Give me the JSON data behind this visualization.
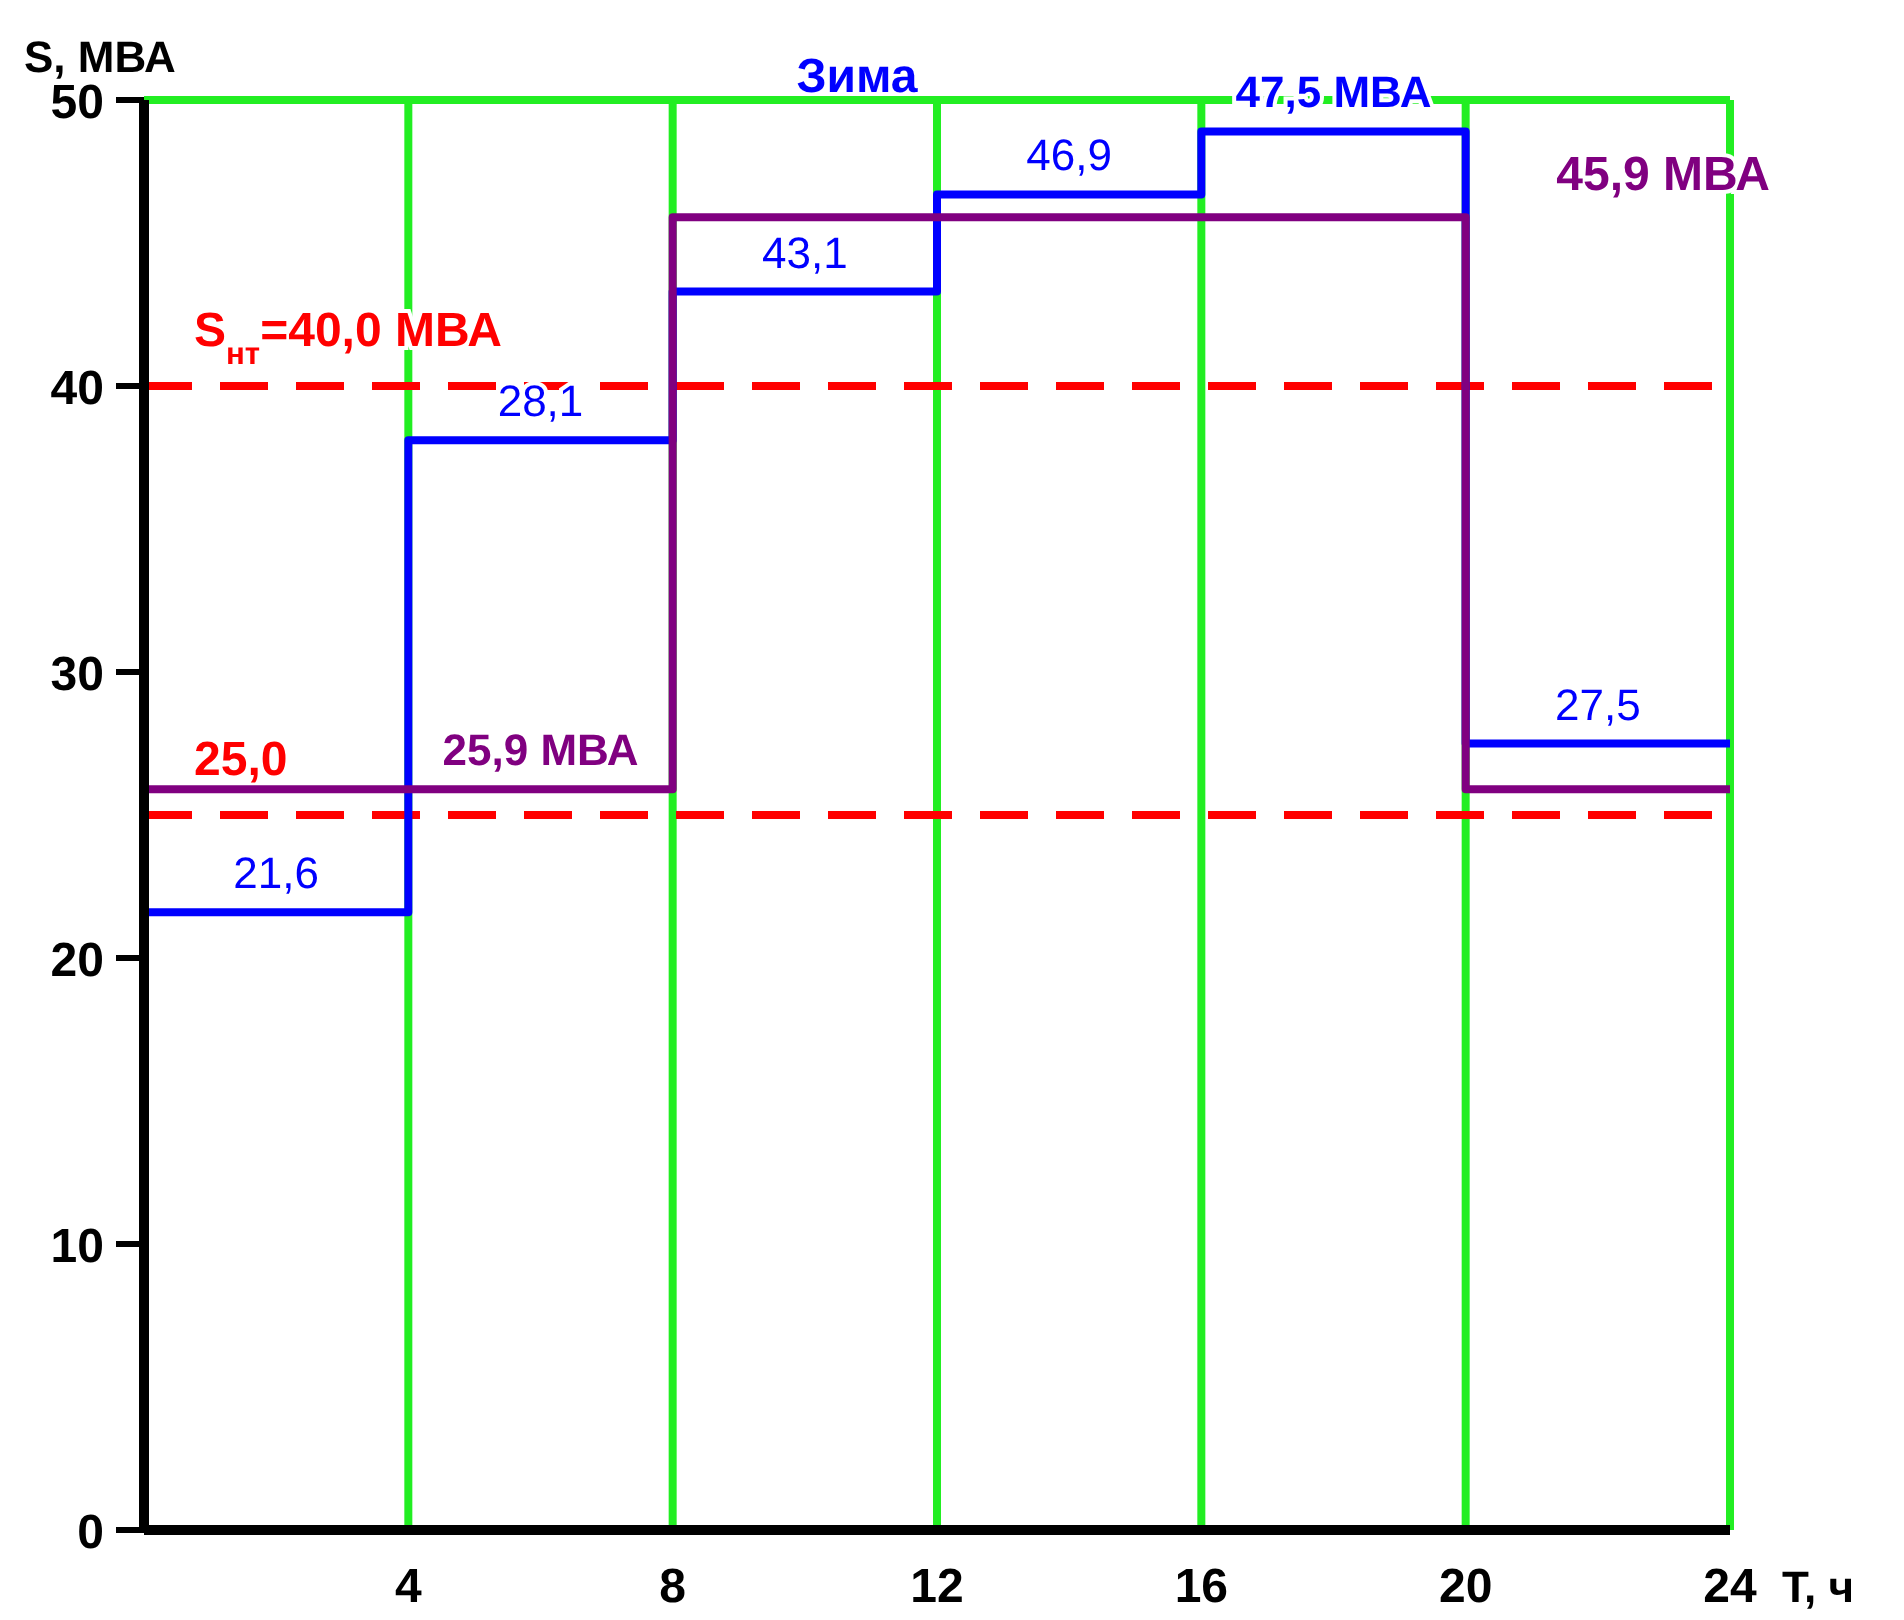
{
  "chart_data": {
    "type": "step",
    "title": "Зима",
    "xlabel": "T, ч",
    "ylabel": "S, МВА",
    "x": [
      0,
      4,
      8,
      12,
      16,
      20,
      24
    ],
    "series": [
      {
        "color": "#0000ff",
        "values": [
          21.6,
          38.1,
          43.3,
          46.7,
          48.9,
          27.5,
          27.5
        ]
      },
      {
        "color": "#800080",
        "values": [
          25.9,
          25.9,
          45.9,
          45.9,
          45.9,
          25.9,
          25.9
        ]
      }
    ],
    "xlim": [
      0,
      24
    ],
    "xticks": [
      4,
      8,
      12,
      16,
      20,
      24
    ],
    "ylim": [
      0,
      50
    ],
    "yticks": [
      0,
      10,
      20,
      30,
      40,
      50
    ],
    "grid": "x",
    "marker": "none",
    "line_style": "solid",
    "ref_lines": [
      {
        "axis": "y",
        "value": 40,
        "label": "S$_{нт}$=40,0 МВА",
        "color": "#ff0000",
        "line_style": "dashed"
      },
      {
        "axis": "y",
        "value": 25,
        "label": "25,0",
        "color": "#ff0000",
        "line_style": "dashed"
      }
    ],
    "annotations": [
      {
        "text": "21,6",
        "x": 2,
        "y": 21.6
      },
      {
        "text": "28,1",
        "x": 6,
        "y": 38.1
      },
      {
        "text": "43,1",
        "x": 10,
        "y": 43.3
      },
      {
        "text": "46,9",
        "x": 14,
        "y": 46.7
      },
      {
        "text": "47,5 МВА",
        "x": 18,
        "y": 48.9
      },
      {
        "text": "27,5",
        "x": 22,
        "y": 27.5
      },
      {
        "text": "25,9 МВА",
        "x": 6,
        "y": 25.9
      },
      "45,9 МВА"
    ]
  }
}
